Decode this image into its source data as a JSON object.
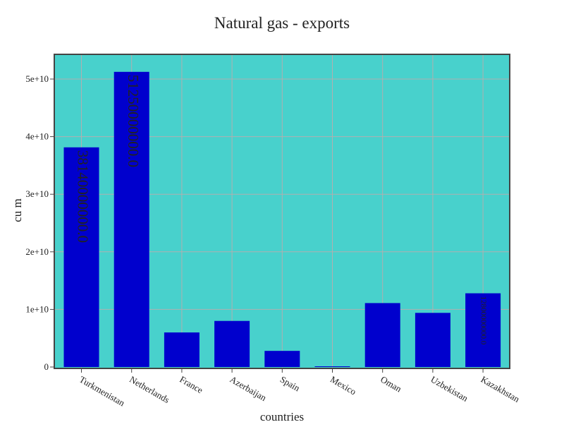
{
  "chart_data": {
    "type": "bar",
    "title": "Natural gas - exports",
    "xlabel": "countries",
    "ylabel": "cu m",
    "categories": [
      "Turkmenistan",
      "Netherlands",
      "France",
      "Azerbaijan",
      "Spain",
      "Mexico",
      "Oman",
      "Uzbekistan",
      "Kazakhstan"
    ],
    "values": [
      38140000000.0,
      51250000000.0,
      6000000000.0,
      8000000000.0,
      2800000000.0,
      100000000.0,
      11100000000.0,
      9400000000.0,
      12800000000.0
    ],
    "value_labels": [
      "38140000000.0",
      "51250000000.0",
      "",
      "",
      "",
      "",
      "",
      "",
      "12800000000.0"
    ],
    "ylim": [
      0,
      54300000000
    ],
    "y_ticks": [
      0,
      10000000000,
      20000000000,
      30000000000,
      40000000000,
      50000000000
    ],
    "y_tick_labels": [
      "0",
      "1e+10",
      "2e+10",
      "3e+10",
      "4e+10",
      "5e+10"
    ],
    "grid": true,
    "legend": "none",
    "colors": {
      "bar": "#0000cd",
      "plot_background": "#48d1cc",
      "grid": "#b0b0b0",
      "axis_frame": "#444444",
      "label_text": "#111111"
    }
  }
}
